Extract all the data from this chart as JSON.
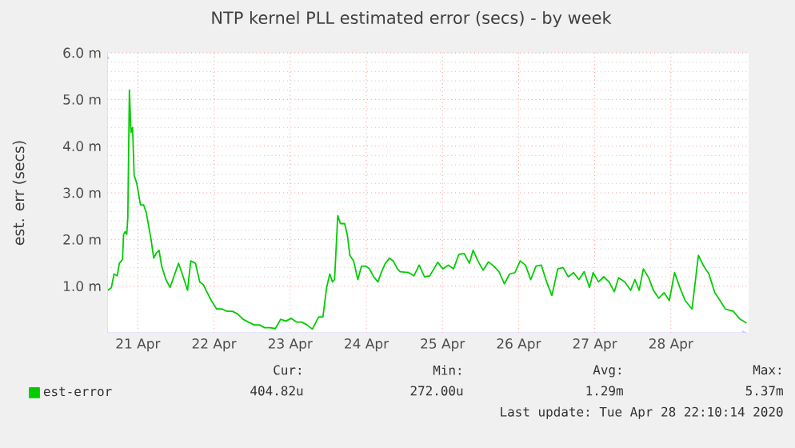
{
  "chart_data": {
    "type": "line",
    "title": "NTP kernel PLL estimated error (secs) - by week",
    "ylabel": "est. err (secs)",
    "xlim": [
      "2020-04-20T14:20",
      "2020-04-29T00:30"
    ],
    "xticks": [
      {
        "value": "2020-04-21",
        "label": "21 Apr"
      },
      {
        "value": "2020-04-22",
        "label": "22 Apr"
      },
      {
        "value": "2020-04-23",
        "label": "23 Apr"
      },
      {
        "value": "2020-04-24",
        "label": "24 Apr"
      },
      {
        "value": "2020-04-25",
        "label": "25 Apr"
      },
      {
        "value": "2020-04-26",
        "label": "26 Apr"
      },
      {
        "value": "2020-04-27",
        "label": "27 Apr"
      },
      {
        "value": "2020-04-28",
        "label": "28 Apr"
      }
    ],
    "ylim": [
      0,
      6
    ],
    "yticks": [
      {
        "value": 1,
        "label": "1.0 m"
      },
      {
        "value": 2,
        "label": "2.0 m"
      },
      {
        "value": 3,
        "label": "3.0 m"
      },
      {
        "value": 4,
        "label": "4.0 m"
      },
      {
        "value": 5,
        "label": "5.0 m"
      },
      {
        "value": 6,
        "label": "6.0 m"
      }
    ],
    "grid": true,
    "legend": "bottom",
    "x": [
      "2020-04-20T14:30",
      "2020-04-20T15:40",
      "2020-04-20T16:30",
      "2020-04-20T17:30",
      "2020-04-20T18:10",
      "2020-04-20T19:10",
      "2020-04-20T19:30",
      "2020-04-20T20:00",
      "2020-04-20T20:30",
      "2020-04-20T20:50",
      "2020-04-20T21:20",
      "2020-04-20T21:50",
      "2020-04-20T22:20",
      "2020-04-20T22:50",
      "2020-04-20T23:40",
      "2020-04-21T00:50",
      "2020-04-21T01:50",
      "2020-04-21T02:40",
      "2020-04-21T04:10",
      "2020-04-21T05:00",
      "2020-04-21T05:50",
      "2020-04-21T06:40",
      "2020-04-21T07:30",
      "2020-04-21T08:50",
      "2020-04-21T10:10",
      "2020-04-21T11:20",
      "2020-04-21T12:50",
      "2020-04-21T14:00",
      "2020-04-21T15:40",
      "2020-04-21T16:40",
      "2020-04-21T18:10",
      "2020-04-21T19:30",
      "2020-04-21T20:40",
      "2020-04-21T21:30",
      "2020-04-21T23:10",
      "2020-04-22T00:50",
      "2020-04-22T02:30",
      "2020-04-22T04:10",
      "2020-04-22T05:50",
      "2020-04-22T07:30",
      "2020-04-22T09:10",
      "2020-04-22T10:50",
      "2020-04-22T12:40",
      "2020-04-22T14:20",
      "2020-04-22T16:00",
      "2020-04-22T17:40",
      "2020-04-22T19:20",
      "2020-04-22T21:00",
      "2020-04-22T22:40",
      "2020-04-23T00:20",
      "2020-04-23T02:00",
      "2020-04-23T03:40",
      "2020-04-23T05:20",
      "2020-04-23T07:00",
      "2020-04-23T09:00",
      "2020-04-23T10:20",
      "2020-04-23T11:30",
      "2020-04-23T12:30",
      "2020-04-23T13:20",
      "2020-04-23T14:00",
      "2020-04-23T15:00",
      "2020-04-23T15:50",
      "2020-04-23T17:10",
      "2020-04-23T18:00",
      "2020-04-23T18:50",
      "2020-04-23T20:00",
      "2020-04-23T21:20",
      "2020-04-23T22:30",
      "2020-04-23T23:50",
      "2020-04-24T01:00",
      "2020-04-24T02:20",
      "2020-04-24T03:40",
      "2020-04-24T04:50",
      "2020-04-24T06:00",
      "2020-04-24T07:20",
      "2020-04-24T08:30",
      "2020-04-24T09:50",
      "2020-04-24T10:40",
      "2020-04-24T13:20",
      "2020-04-24T15:00",
      "2020-04-24T16:40",
      "2020-04-24T18:20",
      "2020-04-24T20:00",
      "2020-04-24T22:30",
      "2020-04-25T00:10",
      "2020-04-25T01:50",
      "2020-04-25T03:30",
      "2020-04-25T05:10",
      "2020-04-25T06:50",
      "2020-04-25T08:30",
      "2020-04-25T09:40",
      "2020-04-25T11:10",
      "2020-04-25T12:50",
      "2020-04-25T14:30",
      "2020-04-25T16:10",
      "2020-04-25T17:50",
      "2020-04-25T19:30",
      "2020-04-25T21:10",
      "2020-04-25T22:50",
      "2020-04-26T00:30",
      "2020-04-26T02:10",
      "2020-04-26T03:50",
      "2020-04-26T05:30",
      "2020-04-26T07:10",
      "2020-04-26T08:50",
      "2020-04-26T10:30",
      "2020-04-26T12:20",
      "2020-04-26T14:00",
      "2020-04-26T15:40",
      "2020-04-26T17:20",
      "2020-04-26T19:00",
      "2020-04-26T20:40",
      "2020-04-26T22:20",
      "2020-04-26T23:30",
      "2020-04-27T01:10",
      "2020-04-27T02:50",
      "2020-04-27T04:30",
      "2020-04-27T06:10",
      "2020-04-27T07:30",
      "2020-04-27T09:30",
      "2020-04-27T11:20",
      "2020-04-27T12:40",
      "2020-04-27T14:00",
      "2020-04-27T15:20",
      "2020-04-27T17:00",
      "2020-04-27T18:30",
      "2020-04-27T20:10",
      "2020-04-27T21:50",
      "2020-04-27T23:30",
      "2020-04-28T01:10",
      "2020-04-28T02:50",
      "2020-04-28T04:30",
      "2020-04-28T06:40",
      "2020-04-28T08:40",
      "2020-04-28T10:20",
      "2020-04-28T12:00",
      "2020-04-28T13:50",
      "2020-04-28T15:30",
      "2020-04-28T17:10",
      "2020-04-28T19:40",
      "2020-04-28T21:50",
      "2020-04-28T23:50"
    ],
    "series": [
      {
        "name": "est-error",
        "color": "#00cc00",
        "values": [
          0.91,
          0.97,
          1.26,
          1.22,
          1.49,
          1.57,
          2.11,
          2.17,
          2.11,
          2.46,
          5.2,
          4.29,
          4.4,
          3.37,
          3.2,
          2.74,
          2.74,
          2.57,
          2.0,
          1.6,
          1.71,
          1.77,
          1.43,
          1.14,
          0.97,
          1.2,
          1.49,
          1.26,
          0.91,
          1.54,
          1.49,
          1.09,
          1.03,
          0.91,
          0.69,
          0.51,
          0.51,
          0.46,
          0.46,
          0.4,
          0.29,
          0.23,
          0.17,
          0.17,
          0.11,
          0.11,
          0.09,
          0.29,
          0.25,
          0.31,
          0.23,
          0.23,
          0.17,
          0.08,
          0.34,
          0.34,
          0.97,
          1.26,
          1.09,
          1.14,
          2.51,
          2.34,
          2.34,
          2.11,
          1.66,
          1.54,
          1.14,
          1.43,
          1.43,
          1.37,
          1.2,
          1.09,
          1.31,
          1.49,
          1.6,
          1.54,
          1.37,
          1.31,
          1.29,
          1.22,
          1.45,
          1.2,
          1.22,
          1.51,
          1.37,
          1.45,
          1.37,
          1.68,
          1.7,
          1.49,
          1.77,
          1.54,
          1.34,
          1.52,
          1.43,
          1.31,
          1.05,
          1.26,
          1.29,
          1.54,
          1.45,
          1.14,
          1.43,
          1.45,
          1.09,
          0.8,
          1.37,
          1.4,
          1.2,
          1.29,
          1.14,
          1.31,
          0.97,
          1.29,
          1.09,
          1.2,
          1.09,
          0.88,
          1.18,
          1.09,
          0.91,
          1.14,
          0.91,
          1.37,
          1.18,
          0.91,
          0.74,
          0.86,
          0.69,
          1.29,
          0.97,
          0.69,
          0.51,
          1.66,
          1.43,
          1.26,
          0.86,
          0.69,
          0.51,
          0.46,
          0.29,
          0.21
        ]
      }
    ],
    "annotations": [
      "Cur:",
      "404.82u",
      "Min:",
      "272.00u",
      "Avg:",
      "1.29m",
      "Max:",
      "5.37m",
      "Last update: Tue Apr 28 22:10:14 2020"
    ]
  }
}
